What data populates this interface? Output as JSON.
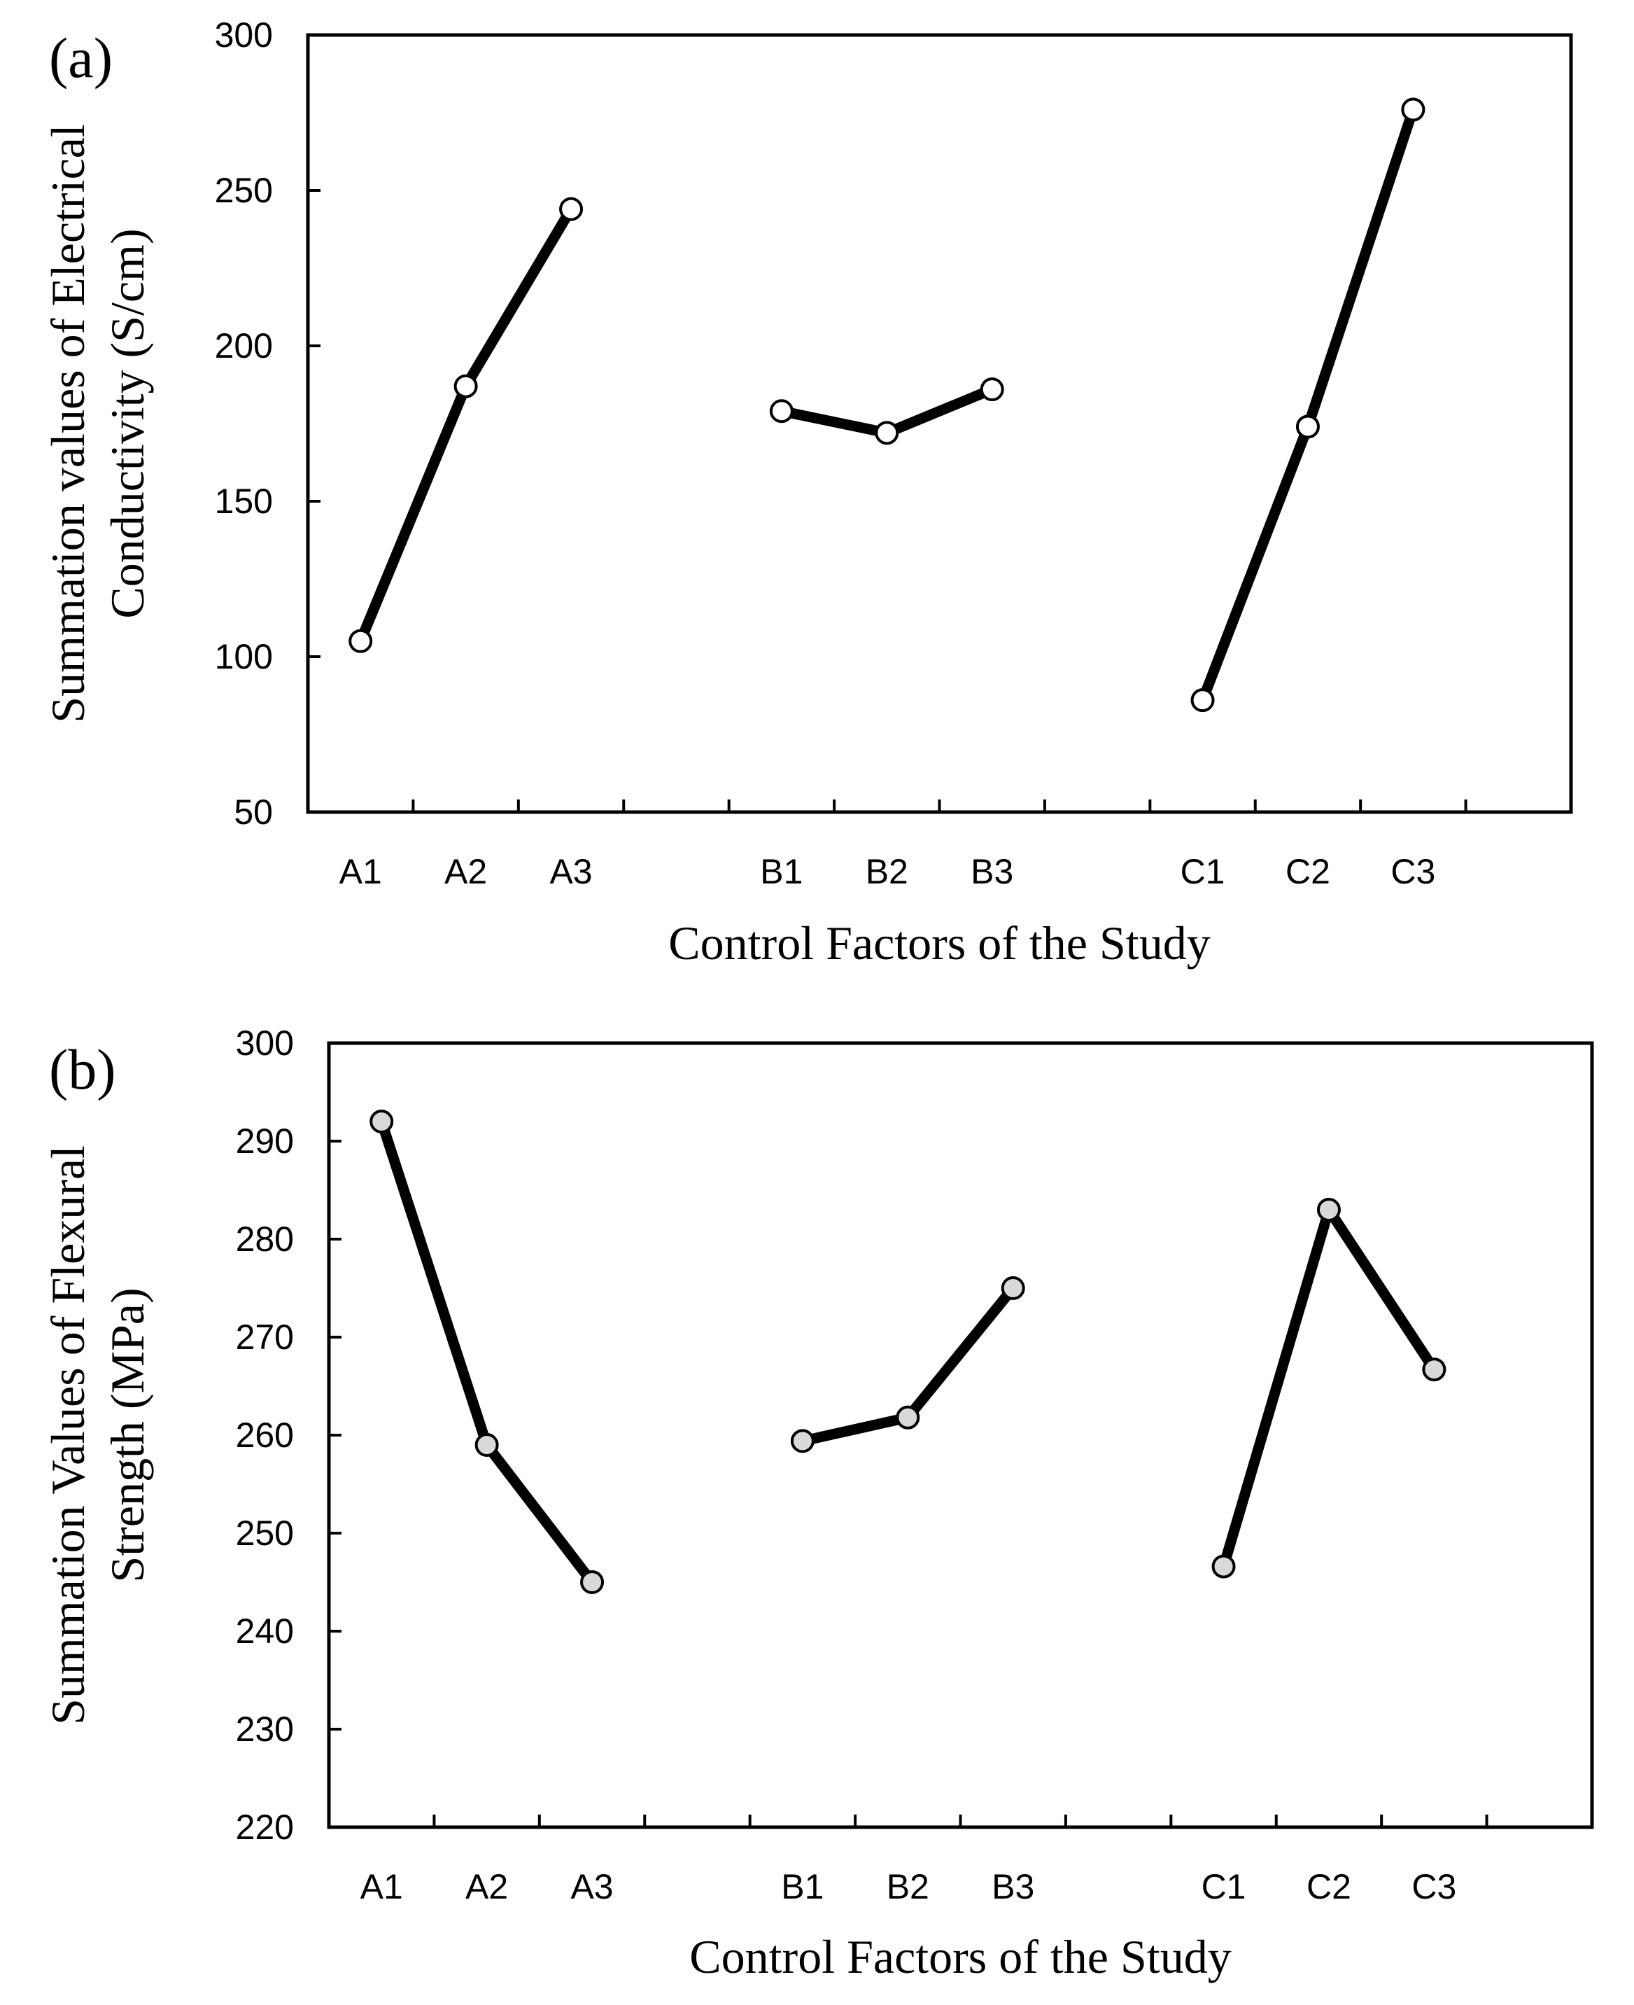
{
  "colors": {
    "panel_a_marker_fill": "#ffffff",
    "panel_b_marker_fill": "#d9d9d9",
    "line": "#000000"
  },
  "chart_data": [
    {
      "type": "line",
      "panel_label": "(a)",
      "title": "",
      "xlabel": "Control Factors of the Study",
      "ylabel_lines": [
        "Summation values of Electrical",
        "Conductivity (S/cm)"
      ],
      "ylim": [
        50,
        300
      ],
      "yticks": [
        50,
        100,
        150,
        200,
        250,
        300
      ],
      "grid": false,
      "categories": [
        "A1",
        "A2",
        "A3",
        "",
        "B1",
        "B2",
        "B3",
        "",
        "C1",
        "C2",
        "C3",
        ""
      ],
      "series": [
        {
          "name": "A",
          "points": [
            {
              "x": "A1",
              "y": 105
            },
            {
              "x": "A2",
              "y": 187
            },
            {
              "x": "A3",
              "y": 244
            }
          ]
        },
        {
          "name": "B",
          "points": [
            {
              "x": "B1",
              "y": 179
            },
            {
              "x": "B2",
              "y": 172
            },
            {
              "x": "B3",
              "y": 186
            }
          ]
        },
        {
          "name": "C",
          "points": [
            {
              "x": "C1",
              "y": 86
            },
            {
              "x": "C2",
              "y": 174
            },
            {
              "x": "C3",
              "y": 276
            }
          ]
        }
      ]
    },
    {
      "type": "line",
      "panel_label": "(b)",
      "title": "",
      "xlabel": "Control Factors of the Study",
      "ylabel_lines": [
        "Summation Values of Flexural",
        "Strength (MPa)"
      ],
      "ylim": [
        220,
        300
      ],
      "yticks": [
        220,
        230,
        240,
        250,
        260,
        270,
        280,
        290,
        300
      ],
      "grid": false,
      "categories": [
        "A1",
        "A2",
        "A3",
        "",
        "B1",
        "B2",
        "B3",
        "",
        "C1",
        "C2",
        "C3",
        ""
      ],
      "series": [
        {
          "name": "A",
          "points": [
            {
              "x": "A1",
              "y": 292
            },
            {
              "x": "A2",
              "y": 259
            },
            {
              "x": "A3",
              "y": 245
            }
          ]
        },
        {
          "name": "B",
          "points": [
            {
              "x": "B1",
              "y": 259.4
            },
            {
              "x": "B2",
              "y": 261.8
            },
            {
              "x": "B3",
              "y": 275
            }
          ]
        },
        {
          "name": "C",
          "points": [
            {
              "x": "C1",
              "y": 246.6
            },
            {
              "x": "C2",
              "y": 283
            },
            {
              "x": "C3",
              "y": 266.7
            }
          ]
        }
      ]
    }
  ]
}
